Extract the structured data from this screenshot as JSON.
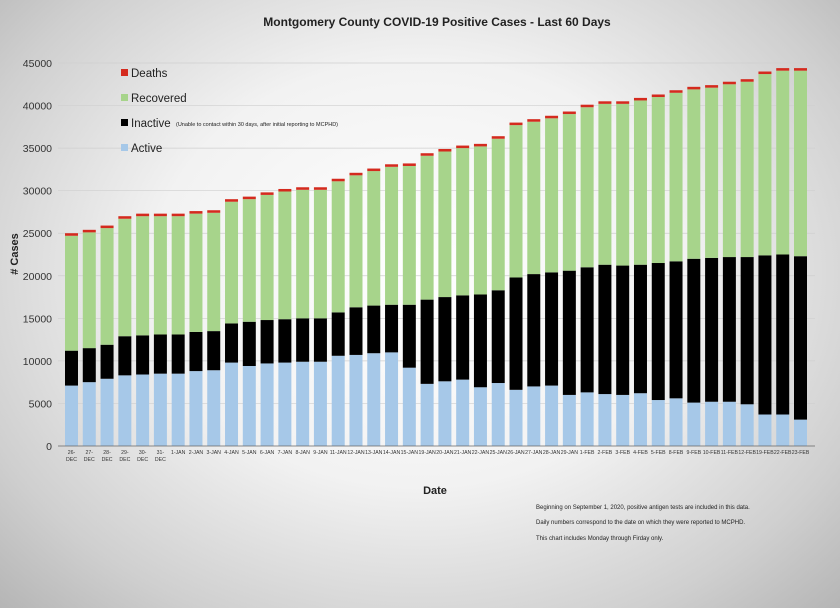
{
  "chart_data": {
    "type": "bar",
    "stacked": true,
    "title": "Montgomery County COVID-19 Positive Cases  - Last 60 Days",
    "xlabel": "Date",
    "ylabel": "# Cases",
    "ylim": [
      0,
      45000
    ],
    "yticks": [
      0,
      5000,
      10000,
      15000,
      20000,
      25000,
      30000,
      35000,
      40000,
      45000
    ],
    "grid": true,
    "legend_position": "top-left",
    "categories": [
      "26-DEC",
      "27-DEC",
      "28-DEC",
      "29-DEC",
      "30-DEC",
      "31-DEC",
      "1-JAN",
      "2-JAN",
      "3-JAN",
      "4-JAN",
      "5-JAN",
      "6-JAN",
      "7-JAN",
      "8-JAN",
      "9-JAN",
      "11-JAN",
      "12-JAN",
      "13-JAN",
      "14-JAN",
      "15-JAN",
      "19-JAN",
      "20-JAN",
      "21-JAN",
      "22-JAN",
      "25-JAN",
      "26-JAN",
      "27-JAN",
      "28-JAN",
      "29-JAN",
      "1-FEB",
      "2-FEB",
      "3-FEB",
      "4-FEB",
      "5-FEB",
      "8-FEB",
      "9-FEB",
      "10-FEB",
      "11-FEB",
      "12-FEB",
      "19-FEB",
      "22-FEB",
      "23-FEB"
    ],
    "series": [
      {
        "name": "Active",
        "color": "#a6c8e8",
        "values": [
          7100,
          7500,
          7900,
          8300,
          8400,
          8500,
          8500,
          8800,
          8900,
          9800,
          9400,
          9700,
          9800,
          9900,
          9900,
          10600,
          10700,
          10900,
          11000,
          9200,
          7300,
          7600,
          7800,
          6900,
          7400,
          6600,
          7000,
          7100,
          6000,
          6300,
          6100,
          6000,
          6200,
          5400,
          5600,
          5100,
          5200,
          5200,
          4900,
          3700,
          3700,
          3100
        ]
      },
      {
        "name": "Inactive",
        "color": "#000000",
        "values": [
          4100,
          4000,
          4000,
          4600,
          4600,
          4600,
          4600,
          4600,
          4600,
          4600,
          5200,
          5100,
          5100,
          5100,
          5100,
          5100,
          5600,
          5600,
          5600,
          7400,
          9900,
          9900,
          9900,
          10900,
          10900,
          13200,
          13200,
          13300,
          14600,
          14700,
          15200,
          15200,
          15100,
          16100,
          16100,
          16900,
          16900,
          17000,
          17300,
          18700,
          18800,
          19200
        ]
      },
      {
        "name": "Recovered",
        "color": "#a7d48b",
        "values": [
          13500,
          13600,
          13700,
          13800,
          14000,
          13900,
          13900,
          13900,
          13900,
          14300,
          14400,
          14700,
          15000,
          15100,
          15100,
          15400,
          15500,
          15800,
          16200,
          16300,
          16900,
          17100,
          17300,
          17400,
          17800,
          17900,
          17900,
          18100,
          18400,
          18800,
          18900,
          19000,
          19300,
          19500,
          19800,
          19900,
          20000,
          20300,
          20600,
          21300,
          21600,
          21800
        ]
      },
      {
        "name": "Deaths",
        "color": "#d42a1e",
        "values": [
          300,
          300,
          300,
          300,
          300,
          300,
          300,
          300,
          300,
          300,
          300,
          300,
          300,
          300,
          300,
          300,
          300,
          300,
          300,
          300,
          300,
          300,
          300,
          300,
          300,
          300,
          300,
          300,
          300,
          300,
          300,
          300,
          300,
          300,
          300,
          300,
          300,
          300,
          300,
          300,
          300,
          300
        ]
      }
    ]
  },
  "legend": {
    "deaths": "Deaths",
    "recovered": "Recovered",
    "inactive": "Inactive",
    "inactive_note": "(Unable to contact within 30 days, after initial reporting to MCPHD)",
    "active": "Active"
  },
  "notes": [
    "Beginning on September 1, 2020, positive antigen tests are included in this data.",
    "Daily numbers correspond to the date on which they were reported to MCPHD.",
    "This chart includes Monday through Firday only."
  ]
}
